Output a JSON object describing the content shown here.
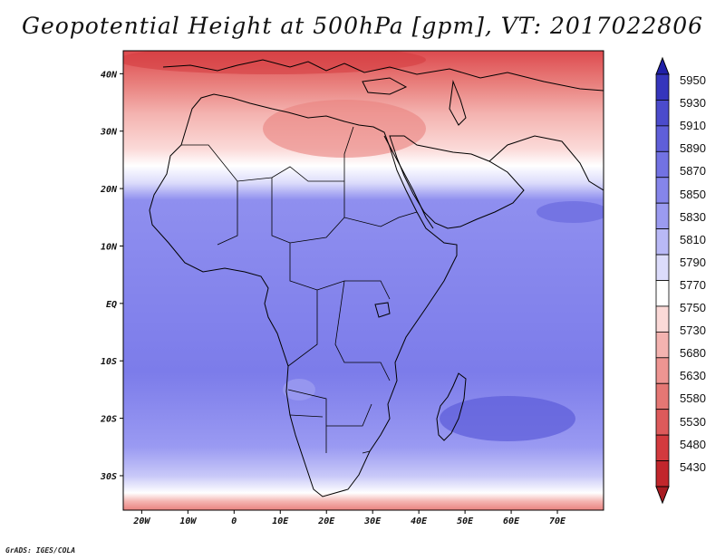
{
  "title": "Geopotential Height at 500hPa [gpm], VT: 2017022806",
  "credit": "GrADS: IGES/COLA",
  "map": {
    "lon_range": [
      -24,
      80
    ],
    "lat_range": [
      -36,
      44
    ],
    "lon_ticks": [
      {
        "value": -20,
        "label": "20W"
      },
      {
        "value": -10,
        "label": "10W"
      },
      {
        "value": 0,
        "label": "0"
      },
      {
        "value": 10,
        "label": "10E"
      },
      {
        "value": 20,
        "label": "20E"
      },
      {
        "value": 30,
        "label": "30E"
      },
      {
        "value": 40,
        "label": "40E"
      },
      {
        "value": 50,
        "label": "50E"
      },
      {
        "value": 60,
        "label": "60E"
      },
      {
        "value": 70,
        "label": "70E"
      }
    ],
    "lat_ticks": [
      {
        "value": 40,
        "label": "40N"
      },
      {
        "value": 30,
        "label": "30N"
      },
      {
        "value": 20,
        "label": "20N"
      },
      {
        "value": 10,
        "label": "10N"
      },
      {
        "value": 0,
        "label": "EQ"
      },
      {
        "value": -10,
        "label": "10S"
      },
      {
        "value": -20,
        "label": "20S"
      },
      {
        "value": -30,
        "label": "30S"
      }
    ],
    "field_bands": [
      {
        "lat": 44,
        "color": "#dd4a4e"
      },
      {
        "lat": 38,
        "color": "#e9827f"
      },
      {
        "lat": 33,
        "color": "#f4b3b0"
      },
      {
        "lat": 27,
        "color": "#fbd9d7"
      },
      {
        "lat": 24,
        "color": "#ffffff"
      },
      {
        "lat": 21,
        "color": "#dcdcfb"
      },
      {
        "lat": 18,
        "color": "#8f8fef"
      },
      {
        "lat": -12,
        "color": "#7c7cea"
      },
      {
        "lat": -25,
        "color": "#9a9af2"
      },
      {
        "lat": -30,
        "color": "#c8c8f8"
      },
      {
        "lat": -33,
        "color": "#ffffff"
      },
      {
        "lat": -34.5,
        "color": "#f4b3b0"
      }
    ]
  },
  "colorbar": {
    "levels": [
      "5950",
      "5930",
      "5910",
      "5890",
      "5870",
      "5850",
      "5830",
      "5810",
      "5790",
      "5770",
      "5750",
      "5730",
      "5680",
      "5630",
      "5580",
      "5530",
      "5480",
      "5430"
    ],
    "colors": [
      "#2020a8",
      "#3535bc",
      "#4b4bcc",
      "#5f5fd9",
      "#7272e3",
      "#8585ea",
      "#9b9bf0",
      "#b9b9f6",
      "#dcdcfb",
      "#ffffff",
      "#fbd9d7",
      "#f4b3b0",
      "#ee9592",
      "#e57774",
      "#dd5a5b",
      "#d33a3e",
      "#c2262c",
      "#a81b22"
    ]
  }
}
